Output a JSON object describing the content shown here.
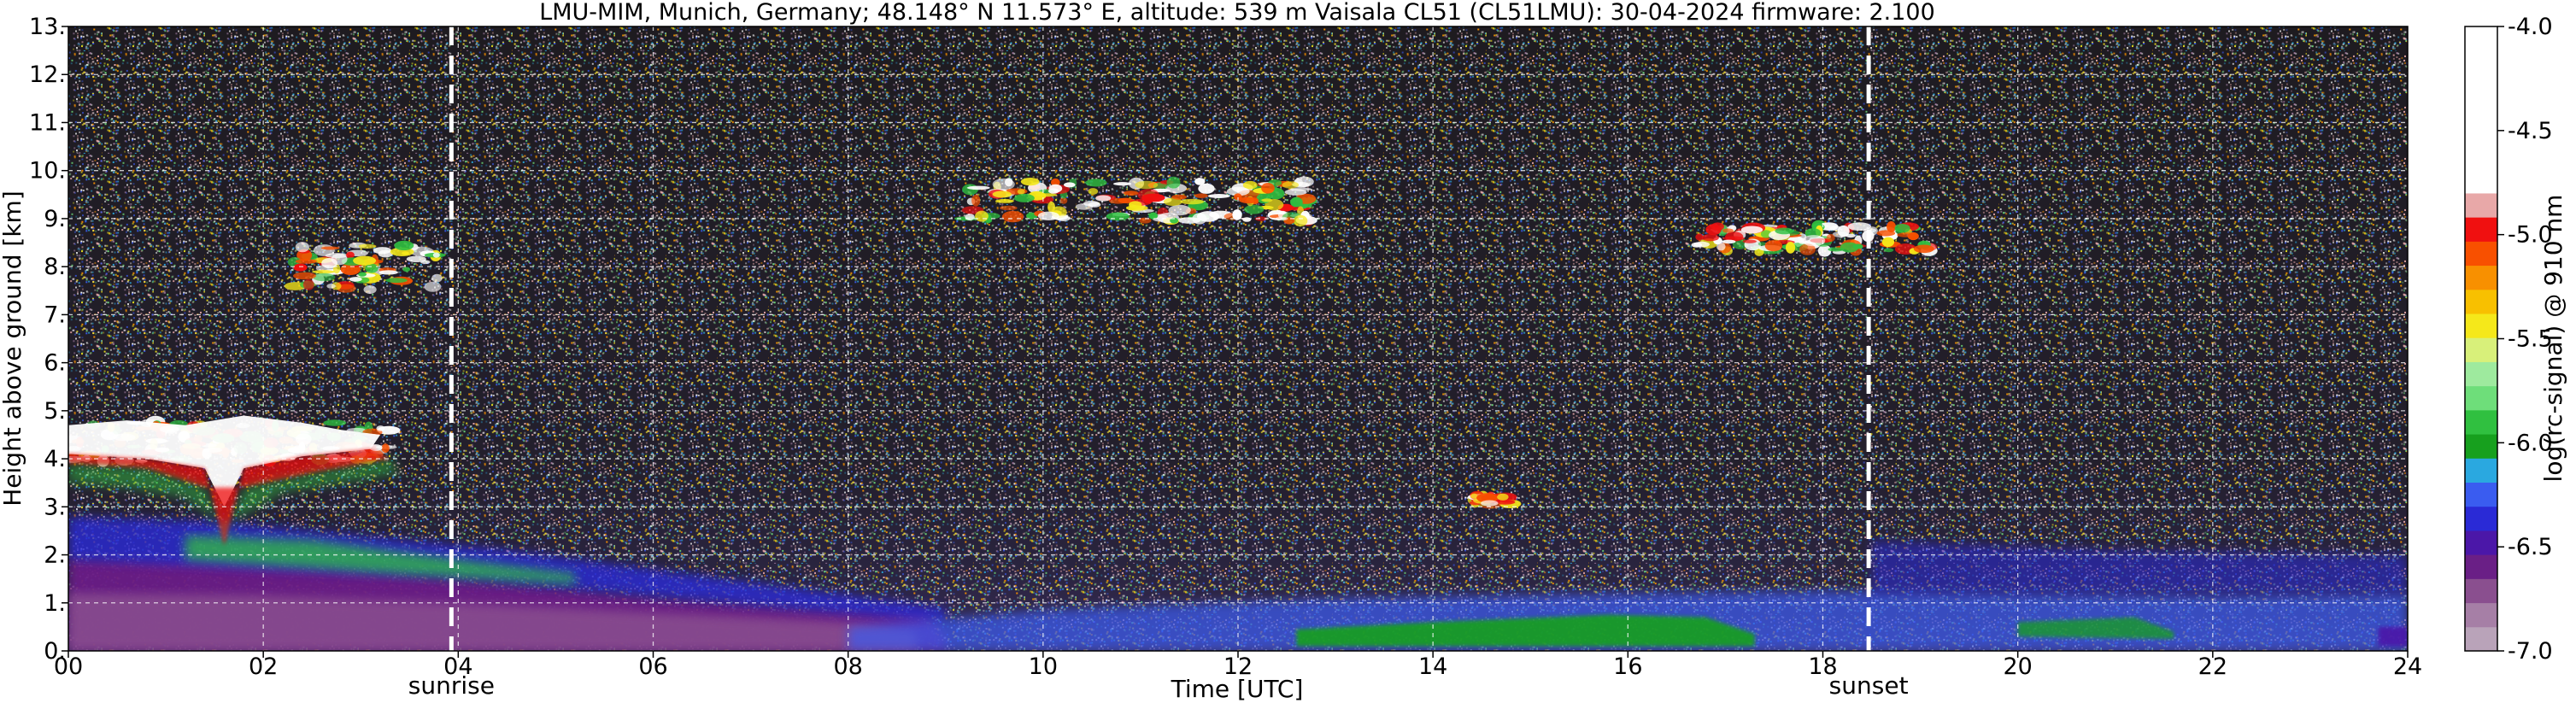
{
  "chart_data": {
    "type": "heatmap",
    "title": "LMU-MIM, Munich, Germany; 48.148° N 11.573° E, altitude: 539 m    Vaisala CL51 (CL51LMU): 30-04-2024    firmware: 2.100",
    "xlabel": "Time [UTC]",
    "ylabel": "Height above ground [km]",
    "colorbar_label": "log(rc-signal) @ 910 nm",
    "xlim": [
      0,
      24
    ],
    "ylim": [
      0,
      13
    ],
    "clim": [
      -7.0,
      -4.0
    ],
    "x_ticks": [
      0,
      2,
      4,
      6,
      8,
      10,
      12,
      14,
      16,
      18,
      20,
      22,
      24
    ],
    "x_tick_labels": [
      "00",
      "02",
      "04",
      "06",
      "08",
      "10",
      "12",
      "14",
      "16",
      "18",
      "20",
      "22",
      "24"
    ],
    "y_ticks": [
      0,
      1,
      2,
      3,
      4,
      5,
      6,
      7,
      8,
      9,
      10,
      11,
      12,
      13
    ],
    "y_tick_labels": [
      "0.",
      "1.",
      "2.",
      "3.",
      "4.",
      "5.",
      "6.",
      "7.",
      "8.",
      "9.",
      "10.",
      "11.",
      "12.",
      "13."
    ],
    "colorbar_ticks": [
      -4.0,
      -4.5,
      -5.0,
      -5.5,
      -6.0,
      -6.5,
      -7.0
    ],
    "colorbar_tick_labels": [
      "-4.0",
      "-4.5",
      "-5.0",
      "-5.5",
      "-6.0",
      "-6.5",
      "-7.0"
    ],
    "grid": true,
    "markers": [
      {
        "label": "sunrise",
        "x": 3.93
      },
      {
        "label": "sunset",
        "x": 18.47
      }
    ],
    "colormap": [
      "#b9a3b9",
      "#a67fa6",
      "#8a4f8f",
      "#6a1f86",
      "#4b17a8",
      "#2a2ad6",
      "#3a5cf0",
      "#2aa8e0",
      "#17a01e",
      "#30c040",
      "#6ede7a",
      "#9eea9e",
      "#d8f07a",
      "#f5e81a",
      "#f8c000",
      "#f89000",
      "#f85000",
      "#f01010",
      "#e8a8a8",
      "#ffffff"
    ],
    "features": [
      {
        "description": "low cloud / boundary layer top",
        "x_range": [
          0,
          3.3
        ],
        "height_km": [
          3.5,
          5.0
        ]
      },
      {
        "description": "cirrus",
        "x_range": [
          2.3,
          3.8
        ],
        "height_km": [
          7.0,
          8.7
        ]
      },
      {
        "description": "cirrus",
        "x_range": [
          9.2,
          12.8
        ],
        "height_km": [
          8.5,
          10.0
        ]
      },
      {
        "description": "cloud",
        "x_range": [
          14.4,
          14.8
        ],
        "height_km": [
          2.9,
          3.3
        ]
      },
      {
        "description": "cirrus",
        "x_range": [
          16.7,
          19.1
        ],
        "height_km": [
          8.0,
          9.0
        ]
      },
      {
        "description": "residual / mixing layer",
        "x_range": [
          0,
          9
        ],
        "height_km": [
          0,
          2.3
        ]
      }
    ]
  }
}
